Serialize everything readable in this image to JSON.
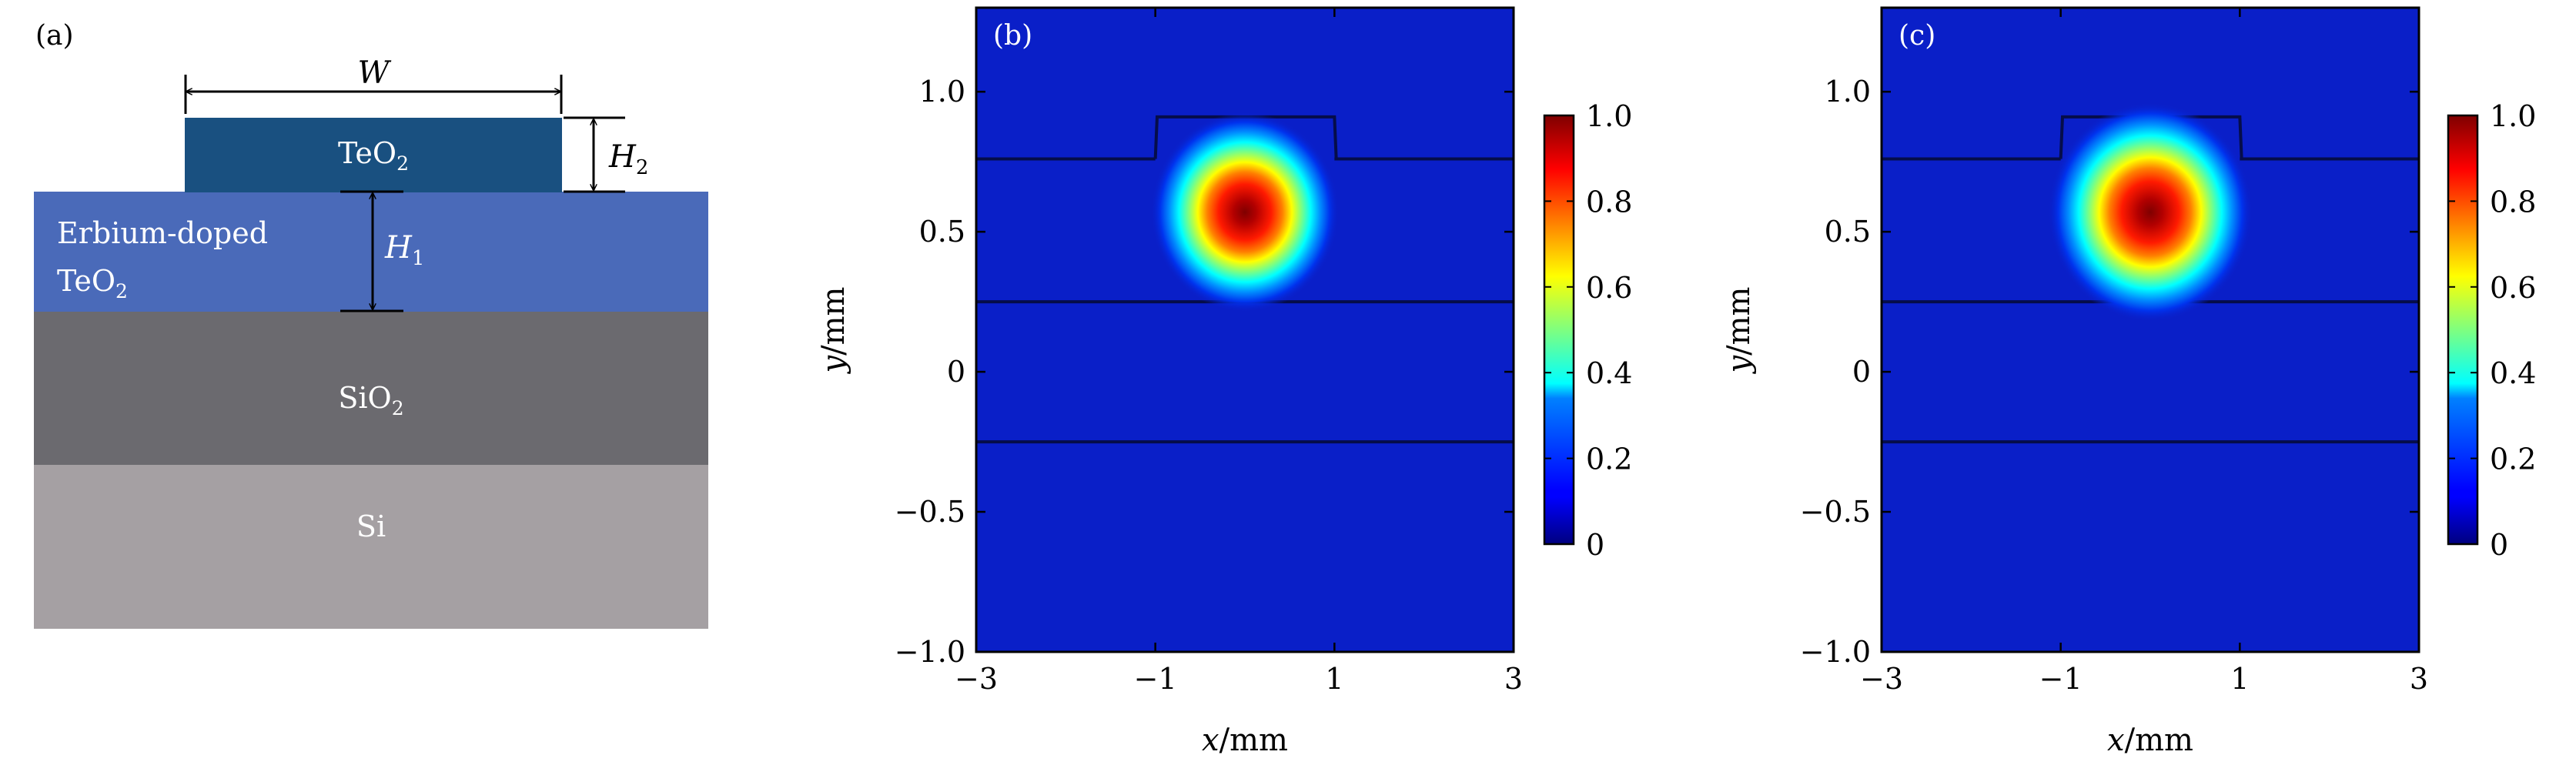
{
  "panel_a": {
    "label": "(a)",
    "dim_w": "W",
    "dim_h1": "H",
    "dim_h1_sub": "1",
    "dim_h2": "H",
    "dim_h2_sub": "2",
    "layers": {
      "ridge": {
        "name": "TeO",
        "sub": "2",
        "color": "#195080"
      },
      "doped": {
        "name_line1": "Erbium-doped",
        "name_line2": "TeO",
        "sub": "2",
        "color": "#4a6ab9"
      },
      "oxide": {
        "name": "SiO",
        "sub": "2",
        "color": "#6b6a6f"
      },
      "substrate": {
        "name": "Si",
        "color": "#a5a0a3"
      }
    }
  },
  "chart_data": [
    {
      "type": "heatmap",
      "label": "(b)",
      "xlabel": "x/mm",
      "ylabel": "y/mm",
      "xlim": [
        -3,
        3
      ],
      "ylim": [
        -1.0,
        1.3
      ],
      "xticks": [
        "−3",
        "−1",
        "1",
        "3"
      ],
      "xtick_values": [
        -3,
        -1,
        1,
        3
      ],
      "yticks": [
        "−1.0",
        "−0.5",
        "0",
        "0.5",
        "1.0"
      ],
      "ytick_values": [
        -1.0,
        -0.5,
        0,
        0.5,
        1.0
      ],
      "mode_center": [
        0,
        0.57
      ],
      "mode_peak": 1.0,
      "colorbar": {
        "min": 0,
        "max": 1.0,
        "ticks": [
          "0",
          "0.2",
          "0.4",
          "0.6",
          "0.8",
          "1.0"
        ]
      }
    },
    {
      "type": "heatmap",
      "label": "(c)",
      "xlabel": "x/mm",
      "ylabel": "y/mm",
      "xlim": [
        -3,
        3
      ],
      "ylim": [
        -1.0,
        1.3
      ],
      "xticks": [
        "−3",
        "−1",
        "1",
        "3"
      ],
      "xtick_values": [
        -3,
        -1,
        1,
        3
      ],
      "yticks": [
        "−1.0",
        "−0.5",
        "0",
        "0.5",
        "1.0"
      ],
      "ytick_values": [
        -1.0,
        -0.5,
        0,
        0.5,
        1.0
      ],
      "mode_center": [
        0,
        0.57
      ],
      "mode_peak": 1.0,
      "colorbar": {
        "min": 0,
        "max": 1.0,
        "ticks": [
          "0",
          "0.2",
          "0.4",
          "0.6",
          "0.8",
          "1.0"
        ]
      }
    }
  ]
}
